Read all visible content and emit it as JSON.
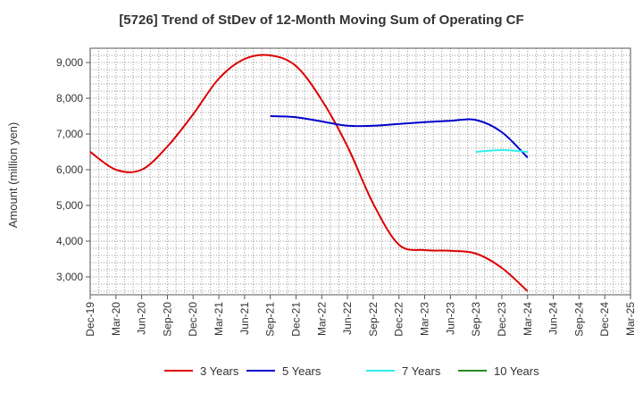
{
  "chart_data": {
    "type": "line",
    "title": "[5726]  Trend of StDev of 12-Month Moving Sum of Operating CF",
    "xlabel": "",
    "ylabel": "Amount (million yen)",
    "ylim": [
      2500,
      9400
    ],
    "yticks": [
      3000,
      4000,
      5000,
      6000,
      7000,
      8000,
      9000
    ],
    "ytick_labels": [
      "3,000",
      "4,000",
      "5,000",
      "6,000",
      "7,000",
      "8,000",
      "9,000"
    ],
    "x_categories": [
      "Dec-19",
      "Mar-20",
      "Jun-20",
      "Sep-20",
      "Dec-20",
      "Mar-21",
      "Jun-21",
      "Sep-21",
      "Dec-21",
      "Mar-22",
      "Jun-22",
      "Sep-22",
      "Dec-22",
      "Mar-23",
      "Jun-23",
      "Sep-23",
      "Dec-23",
      "Mar-24",
      "Jun-24",
      "Sep-24",
      "Dec-24",
      "Mar-25"
    ],
    "grid": true,
    "legend_position": "bottom",
    "series": [
      {
        "name": "3 Years",
        "color": "#dd0000",
        "x": [
          "Dec-19",
          "Mar-20",
          "Jun-20",
          "Sep-20",
          "Dec-20",
          "Mar-21",
          "Jun-21",
          "Sep-21",
          "Dec-21",
          "Mar-22",
          "Jun-22",
          "Sep-22",
          "Dec-22",
          "Mar-23",
          "Jun-23",
          "Sep-23",
          "Dec-23",
          "Mar-24"
        ],
        "values": [
          6500,
          6000,
          6000,
          6650,
          7550,
          8550,
          9100,
          9200,
          8900,
          7950,
          6650,
          5050,
          3900,
          3750,
          3730,
          3650,
          3250,
          2600
        ]
      },
      {
        "name": "5 Years",
        "color": "#0000cc",
        "x": [
          "Sep-21",
          "Dec-21",
          "Mar-22",
          "Jun-22",
          "Sep-22",
          "Dec-22",
          "Mar-23",
          "Jun-23",
          "Sep-23",
          "Dec-23",
          "Mar-24"
        ],
        "values": [
          7500,
          7470,
          7350,
          7230,
          7230,
          7280,
          7330,
          7370,
          7390,
          7050,
          6340
        ]
      },
      {
        "name": "7 Years",
        "color": "#33eeee",
        "x": [
          "Sep-23",
          "Dec-23",
          "Mar-24"
        ],
        "values": [
          6500,
          6550,
          6500
        ]
      },
      {
        "name": "10 Years",
        "color": "#228b22",
        "x": [],
        "values": []
      }
    ]
  }
}
